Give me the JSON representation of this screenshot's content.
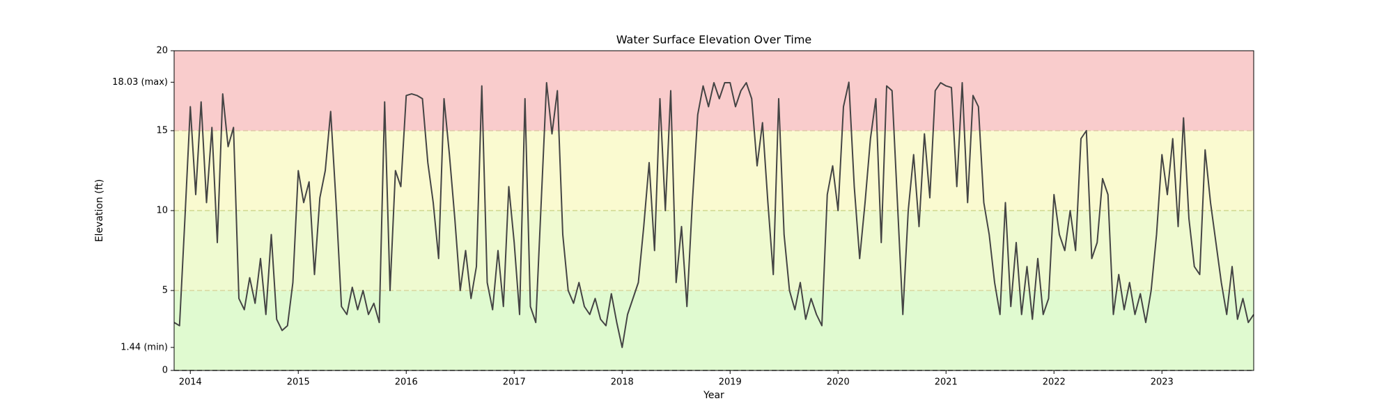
{
  "chart_data": {
    "type": "line",
    "title": "Water Surface Elevation Over Time",
    "x_label": "Year",
    "y_label": "Elevation (ft)",
    "color": "#444444",
    "xlim": [
      2013.85,
      2023.85
    ],
    "xticks": [
      2014,
      2015,
      2016,
      2017,
      2018,
      2019,
      2020,
      2021,
      2022,
      2023
    ],
    "ylim": [
      0,
      20
    ],
    "yticks": [
      0,
      {
        "value": 1.44,
        "label": "1.44 (min)"
      },
      5,
      10,
      15,
      {
        "value": 18.03,
        "label": "18.03 (max)"
      },
      20
    ],
    "bands": [
      {
        "from": 0,
        "to": 5,
        "color": "#e0fad0"
      },
      {
        "from": 5,
        "to": 10,
        "color": "#effad0"
      },
      {
        "from": 10,
        "to": 15,
        "color": "#fafad0"
      },
      {
        "from": 15,
        "to": 20,
        "color": "#f9cccc"
      }
    ],
    "reference_lines": [
      {
        "value": 0,
        "color": "#555555"
      },
      {
        "value": 5,
        "color": "#d8d8a0"
      },
      {
        "value": 10,
        "color": "#cfd890"
      },
      {
        "value": 15,
        "color": "#e0c8a8"
      }
    ],
    "x": [
      2013.85,
      2013.9,
      2013.95,
      2014,
      2014.05,
      2014.1,
      2014.15,
      2014.2,
      2014.25,
      2014.3,
      2014.35,
      2014.4,
      2014.45,
      2014.5,
      2014.55,
      2014.6,
      2014.65,
      2014.7,
      2014.75,
      2014.8,
      2014.85,
      2014.9,
      2014.95,
      2015,
      2015.05,
      2015.1,
      2015.15,
      2015.2,
      2015.25,
      2015.3,
      2015.35,
      2015.4,
      2015.45,
      2015.5,
      2015.55,
      2015.6,
      2015.65,
      2015.7,
      2015.75,
      2015.8,
      2015.85,
      2015.9,
      2015.95,
      2016,
      2016.05,
      2016.1,
      2016.15,
      2016.2,
      2016.25,
      2016.3,
      2016.35,
      2016.4,
      2016.45,
      2016.5,
      2016.55,
      2016.6,
      2016.65,
      2016.7,
      2016.75,
      2016.8,
      2016.85,
      2016.9,
      2016.95,
      2017,
      2017.05,
      2017.1,
      2017.15,
      2017.2,
      2017.25,
      2017.3,
      2017.35,
      2017.4,
      2017.45,
      2017.5,
      2017.55,
      2017.6,
      2017.65,
      2017.7,
      2017.75,
      2017.8,
      2017.85,
      2017.9,
      2017.95,
      2018,
      2018.05,
      2018.1,
      2018.15,
      2018.2,
      2018.25,
      2018.3,
      2018.35,
      2018.4,
      2018.45,
      2018.5,
      2018.55,
      2018.6,
      2018.65,
      2018.7,
      2018.75,
      2018.8,
      2018.85,
      2018.9,
      2018.95,
      2019,
      2019.05,
      2019.1,
      2019.15,
      2019.2,
      2019.25,
      2019.3,
      2019.35,
      2019.4,
      2019.45,
      2019.5,
      2019.55,
      2019.6,
      2019.65,
      2019.7,
      2019.75,
      2019.8,
      2019.85,
      2019.9,
      2019.95,
      2020,
      2020.05,
      2020.1,
      2020.15,
      2020.2,
      2020.25,
      2020.3,
      2020.35,
      2020.4,
      2020.45,
      2020.5,
      2020.55,
      2020.6,
      2020.65,
      2020.7,
      2020.75,
      2020.8,
      2020.85,
      2020.9,
      2020.95,
      2021,
      2021.05,
      2021.1,
      2021.15,
      2021.2,
      2021.25,
      2021.3,
      2021.35,
      2021.4,
      2021.45,
      2021.5,
      2021.55,
      2021.6,
      2021.65,
      2021.7,
      2021.75,
      2021.8,
      2021.85,
      2021.9,
      2021.95,
      2022,
      2022.05,
      2022.1,
      2022.15,
      2022.2,
      2022.25,
      2022.3,
      2022.35,
      2022.4,
      2022.45,
      2022.5,
      2022.55,
      2022.6,
      2022.65,
      2022.7,
      2022.75,
      2022.8,
      2022.85,
      2022.9,
      2022.95,
      2023,
      2023.05,
      2023.1,
      2023.15,
      2023.2,
      2023.25,
      2023.3,
      2023.35,
      2023.4,
      2023.45,
      2023.5,
      2023.55,
      2023.6,
      2023.65,
      2023.7,
      2023.75,
      2023.8,
      2023.85
    ],
    "values": [
      3.0,
      2.8,
      9.5,
      16.5,
      11.0,
      16.8,
      10.5,
      15.2,
      8.0,
      17.3,
      14.0,
      15.2,
      4.5,
      3.8,
      5.8,
      4.2,
      7.0,
      3.5,
      8.5,
      3.2,
      2.5,
      2.8,
      5.5,
      12.5,
      10.5,
      11.8,
      6.0,
      10.8,
      12.5,
      16.2,
      10.5,
      4.0,
      3.5,
      5.2,
      3.8,
      5.0,
      3.5,
      4.2,
      3.0,
      16.8,
      5.0,
      12.5,
      11.5,
      17.2,
      17.3,
      17.2,
      17.0,
      13.0,
      10.5,
      7.0,
      17.0,
      13.5,
      9.5,
      5.0,
      7.5,
      4.5,
      6.5,
      17.8,
      5.5,
      3.8,
      7.5,
      4.0,
      11.5,
      8.0,
      3.5,
      17.0,
      4.0,
      3.0,
      10.5,
      18.0,
      14.8,
      17.5,
      8.5,
      5.0,
      4.2,
      5.5,
      4.0,
      3.5,
      4.5,
      3.2,
      2.8,
      4.8,
      3.0,
      1.44,
      3.5,
      4.5,
      5.5,
      9.0,
      13.0,
      7.5,
      17.0,
      10.0,
      17.5,
      5.5,
      9.0,
      4.0,
      10.5,
      16.0,
      17.8,
      16.5,
      18.0,
      17.0,
      18.0,
      18.0,
      16.5,
      17.5,
      18.0,
      17.0,
      12.8,
      15.5,
      10.5,
      6.0,
      17.0,
      8.5,
      5.0,
      3.8,
      5.5,
      3.2,
      4.5,
      3.5,
      2.8,
      11.0,
      12.8,
      10.0,
      16.5,
      18.03,
      11.5,
      7.0,
      10.5,
      14.5,
      17.0,
      8.0,
      17.8,
      17.5,
      10.5,
      3.5,
      10.0,
      13.5,
      9.0,
      14.8,
      10.8,
      17.5,
      18.0,
      17.8,
      17.7,
      11.5,
      18.0,
      10.5,
      17.2,
      16.5,
      10.5,
      8.5,
      5.5,
      3.5,
      10.5,
      4.0,
      8.0,
      3.5,
      6.5,
      3.2,
      7.0,
      3.5,
      4.5,
      11.0,
      8.5,
      7.5,
      10.0,
      7.5,
      14.5,
      15.0,
      7.0,
      8.0,
      12.0,
      11.0,
      3.5,
      6.0,
      3.8,
      5.5,
      3.5,
      4.8,
      3.0,
      5.0,
      8.5,
      13.5,
      11.0,
      14.5,
      9.0,
      15.8,
      9.5,
      6.5,
      6.0,
      13.8,
      10.5,
      8.0,
      5.5,
      3.5,
      6.5,
      3.2,
      4.5,
      3.0,
      3.5
    ]
  }
}
